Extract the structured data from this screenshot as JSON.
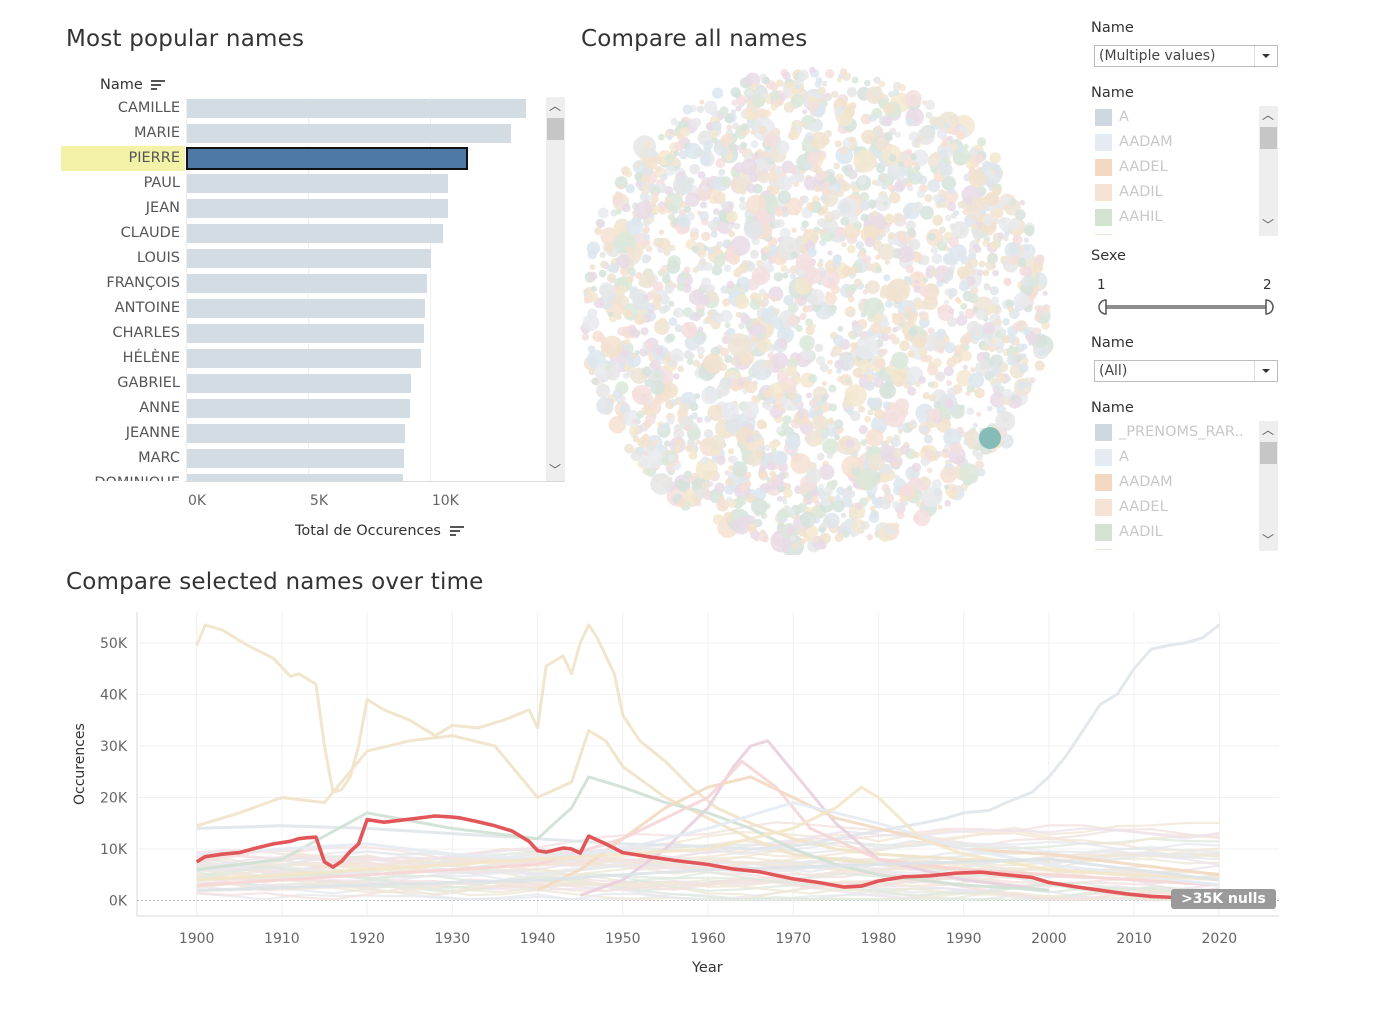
{
  "popular": {
    "title": "Most popular names",
    "header": "Name",
    "axis_title": "Total de Occurences",
    "ticks": [
      "0K",
      "5K",
      "10K"
    ],
    "selected": "PIERRE"
  },
  "bubbles": {
    "title": "Compare all names"
  },
  "timeline": {
    "title": "Compare selected names over time",
    "ylabel": "Occurences",
    "xlabel": "Year",
    "nulls": ">35K nulls"
  },
  "filters": {
    "name1": {
      "title": "Name",
      "value": "(Multiple values)"
    },
    "legend1": {
      "title": "Name",
      "items": [
        {
          "label": "A",
          "color": "#cfd8e0"
        },
        {
          "label": "AADAM",
          "color": "#e4ebf2"
        },
        {
          "label": "AADEL",
          "color": "#f3d9c2"
        },
        {
          "label": "AADIL",
          "color": "#f6e3d6"
        },
        {
          "label": "AAHIL",
          "color": "#d3e2d1"
        }
      ]
    },
    "sexe": {
      "title": "Sexe",
      "min_label": "1",
      "max_label": "2"
    },
    "name2": {
      "title": "Name",
      "value": "(All)"
    },
    "legend2": {
      "title": "Name",
      "items": [
        {
          "label": "_PRENOMS_RAR..",
          "color": "#cfd8e0"
        },
        {
          "label": "A",
          "color": "#e4ebf2"
        },
        {
          "label": "AADAM",
          "color": "#f3d9c2"
        },
        {
          "label": "AADEL",
          "color": "#f6e3d6"
        },
        {
          "label": "AADIL",
          "color": "#d3e2d1"
        }
      ]
    }
  },
  "chart_data": [
    {
      "type": "bar",
      "orientation": "horizontal",
      "title": "Most popular names",
      "xlabel": "Total de Occurences",
      "ylabel": "Name",
      "categories": [
        "CAMILLE",
        "MARIE",
        "PIERRE",
        "PAUL",
        "JEAN",
        "CLAUDE",
        "LOUIS",
        "FRANÇOIS",
        "ANTOINE",
        "CHARLES",
        "HÉLÈNE",
        "GABRIEL",
        "ANNE",
        "JEANNE",
        "MARC",
        "DOMINIQUE"
      ],
      "values": [
        13900,
        13300,
        11500,
        10700,
        10700,
        10500,
        10000,
        9850,
        9750,
        9700,
        9600,
        9200,
        9150,
        8950,
        8900,
        8850
      ],
      "xlim": [
        0,
        15500
      ],
      "xticks": [
        "0K",
        "5K",
        "10K"
      ]
    },
    {
      "type": "line",
      "title": "Compare selected names over time",
      "xlabel": "Year",
      "ylabel": "Occurences",
      "xlim": [
        1893,
        2027
      ],
      "ylim": [
        -3000,
        56000
      ],
      "xticks": [
        1900,
        1910,
        1920,
        1930,
        1940,
        1950,
        1960,
        1970,
        1980,
        1990,
        2000,
        2010,
        2020
      ],
      "yticks": [
        "0K",
        "10K",
        "20K",
        "30K",
        "40K",
        "50K"
      ],
      "highlight": {
        "name": "PIERRE",
        "color": "#e15759",
        "x": [
          1900,
          1901,
          1903,
          1905,
          1907,
          1909,
          1911,
          1912,
          1913,
          1914,
          1915,
          1916,
          1917,
          1918,
          1919,
          1920,
          1922,
          1924,
          1926,
          1928,
          1930,
          1931,
          1933,
          1935,
          1937,
          1939,
          1940,
          1941,
          1943,
          1944,
          1945,
          1946,
          1948,
          1950,
          1953,
          1956,
          1960,
          1963,
          1966,
          1970,
          1973,
          1976,
          1978,
          1980,
          1983,
          1986,
          1989,
          1992,
          1995,
          1998,
          2000,
          2003,
          2006,
          2009,
          2012,
          2015,
          2018,
          2020
        ],
        "y": [
          7500,
          8500,
          9000,
          9300,
          10200,
          11000,
          11500,
          12000,
          12200,
          12300,
          7500,
          6500,
          7600,
          9500,
          11000,
          15700,
          15200,
          15600,
          16000,
          16400,
          16200,
          16000,
          15300,
          14500,
          13500,
          11500,
          9700,
          9400,
          10200,
          10000,
          9200,
          12500,
          11000,
          9300,
          8500,
          7800,
          7000,
          6100,
          5600,
          4200,
          3500,
          2600,
          2800,
          3800,
          4600,
          4800,
          5300,
          5500,
          5000,
          4500,
          3500,
          2700,
          2000,
          1300,
          800,
          600,
          500,
          500
        ]
      },
      "series": [
        {
          "color": "#efe3c8",
          "x": [
            1900,
            1901,
            1903,
            1906,
            1909,
            1911,
            1912,
            1914,
            1915,
            1916,
            1917,
            1918,
            1919,
            1920,
            1922,
            1925,
            1928,
            1930,
            1933,
            1936,
            1939,
            1940,
            1941,
            1943,
            1944,
            1945,
            1946,
            1947,
            1949,
            1950,
            1952,
            1955,
            1958,
            1961,
            1965,
            1970,
            1975,
            1980,
            1990,
            2000
          ],
          "y": [
            49500,
            53500,
            52500,
            49500,
            47000,
            43500,
            44000,
            42000,
            30000,
            21000,
            21500,
            24000,
            30000,
            39000,
            37000,
            35000,
            32000,
            34000,
            33500,
            35000,
            37000,
            33500,
            45500,
            47500,
            44000,
            50000,
            53500,
            51000,
            44000,
            36000,
            31000,
            27000,
            22000,
            18000,
            15000,
            12000,
            10000,
            9000,
            8000,
            7500
          ]
        },
        {
          "color": "#efe3c8",
          "x": [
            1900,
            1905,
            1910,
            1915,
            1920,
            1925,
            1930,
            1935,
            1940,
            1944,
            1946,
            1948,
            1950,
            1955,
            1960,
            1965,
            1970,
            1980,
            1990,
            2000
          ],
          "y": [
            14500,
            17000,
            20000,
            19000,
            29000,
            31000,
            32000,
            30000,
            20000,
            23000,
            33000,
            31000,
            26000,
            20000,
            16000,
            12000,
            9000,
            7000,
            6000,
            5000
          ]
        },
        {
          "color": "#dfe5ea",
          "x": [
            1900,
            1910,
            1920,
            1930,
            1940,
            1950,
            1960,
            1965,
            1970,
            1975,
            1980,
            1985,
            1988,
            1990,
            1993,
            1995,
            1998,
            2000,
            2002,
            2004,
            2006,
            2008,
            2010,
            2012,
            2014,
            2016,
            2018,
            2020
          ],
          "y": [
            14000,
            14500,
            14000,
            13000,
            12000,
            11000,
            10500,
            10000,
            10500,
            12000,
            13500,
            15000,
            16000,
            17000,
            17500,
            19000,
            21000,
            24000,
            28000,
            33000,
            38000,
            40000,
            45000,
            48800,
            49500,
            50000,
            51000,
            53500
          ]
        },
        {
          "color": "#e8cfdd",
          "x": [
            1945,
            1950,
            1955,
            1960,
            1963,
            1965,
            1967,
            1970,
            1975,
            1980,
            1990,
            2000
          ],
          "y": [
            1000,
            4000,
            10000,
            18000,
            26000,
            30000,
            31000,
            25000,
            15000,
            8000,
            4000,
            2000
          ]
        },
        {
          "color": "#cfe0d4",
          "x": [
            1900,
            1910,
            1920,
            1930,
            1940,
            1944,
            1946,
            1950,
            1955,
            1960,
            1965,
            1970,
            1975,
            1980,
            1990,
            2000
          ],
          "y": [
            6000,
            8000,
            17000,
            14000,
            12000,
            18000,
            24000,
            22000,
            19000,
            17000,
            14000,
            10000,
            7000,
            5000,
            3000,
            2000
          ]
        },
        {
          "color": "#f3d9c2",
          "x": [
            1940,
            1945,
            1950,
            1955,
            1960,
            1965,
            1970,
            1975,
            1980,
            1985,
            1990,
            2000,
            2010,
            2020
          ],
          "y": [
            2000,
            6000,
            12000,
            18000,
            22000,
            24000,
            20000,
            16000,
            14000,
            12000,
            10000,
            9000,
            7000,
            5000
          ]
        },
        {
          "color": "#f6d5d5",
          "x": [
            1900,
            1920,
            1940,
            1950,
            1960,
            1964,
            1968,
            1972,
            1980,
            1990,
            2000,
            2010,
            2020
          ],
          "y": [
            3000,
            5000,
            7000,
            12000,
            20000,
            27000,
            22000,
            14000,
            8000,
            6000,
            5000,
            4000,
            3000
          ]
        },
        {
          "color": "#e4ebf2",
          "x": [
            1900,
            1910,
            1920,
            1930,
            1940,
            1950,
            1960,
            1970,
            1980,
            1990,
            2000,
            2010,
            2020
          ],
          "y": [
            9000,
            10000,
            11000,
            9000,
            8000,
            10000,
            14000,
            19000,
            15000,
            10000,
            7000,
            5000,
            3000
          ]
        },
        {
          "color": "#f3e5c8",
          "x": [
            1900,
            1920,
            1940,
            1960,
            1970,
            1975,
            1978,
            1980,
            1985,
            1990,
            2000,
            2020
          ],
          "y": [
            4000,
            6000,
            8000,
            10000,
            14000,
            18000,
            22000,
            20000,
            12000,
            9000,
            6000,
            4000
          ]
        },
        {
          "color": "#dde3e8",
          "x": [
            1900,
            1920,
            1940,
            1960,
            1980,
            2000,
            2010,
            2020
          ],
          "y": [
            2000,
            3000,
            4000,
            6000,
            7000,
            8000,
            6000,
            4000
          ]
        }
      ]
    }
  ]
}
